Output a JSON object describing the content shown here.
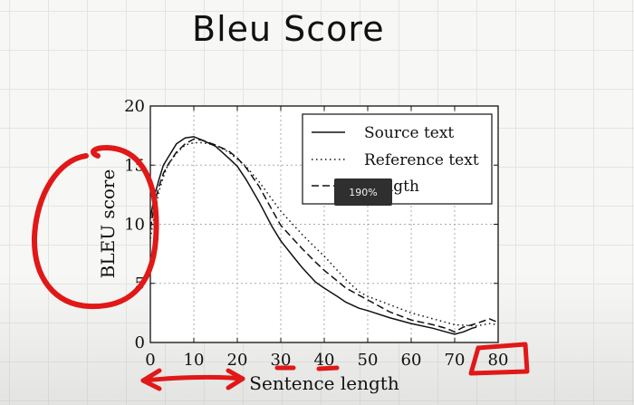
{
  "slide": {
    "title": "Bleu Score"
  },
  "zoom_tooltip": "190%",
  "chart_data": {
    "type": "line",
    "xlabel": "Sentence length",
    "ylabel": "BLEU score",
    "xlim": [
      0,
      80
    ],
    "ylim": [
      0,
      20
    ],
    "x_ticks": [
      0,
      10,
      20,
      30,
      40,
      50,
      60,
      70,
      80
    ],
    "y_ticks": [
      0,
      5,
      10,
      15,
      20
    ],
    "grid": true,
    "legend_position": "top-right",
    "series": [
      {
        "name": "Source text",
        "style": "solid",
        "x": [
          0,
          1,
          2,
          3,
          4,
          6,
          8,
          10,
          12,
          15,
          18,
          20,
          22,
          25,
          28,
          30,
          33,
          35,
          38,
          40,
          43,
          45,
          48,
          50,
          55,
          60,
          65,
          68,
          70,
          72,
          74,
          75
        ],
        "y": [
          10.5,
          12.5,
          13.8,
          15.0,
          15.6,
          16.8,
          17.3,
          17.4,
          17.1,
          16.6,
          15.6,
          14.9,
          13.8,
          11.9,
          9.8,
          8.6,
          7.2,
          6.3,
          5.1,
          4.6,
          3.9,
          3.4,
          2.9,
          2.7,
          2.1,
          1.6,
          1.2,
          0.9,
          0.7,
          0.9,
          1.2,
          1.3
        ]
      },
      {
        "name": "Reference text",
        "style": "dotted",
        "x": [
          0,
          1,
          2,
          3,
          4,
          6,
          8,
          10,
          12,
          15,
          18,
          20,
          22,
          25,
          28,
          30,
          33,
          35,
          38,
          40,
          43,
          45,
          48,
          50,
          55,
          60,
          65,
          70,
          75,
          78,
          80
        ],
        "y": [
          8.8,
          11.0,
          12.8,
          14.0,
          15.0,
          16.0,
          16.7,
          16.9,
          16.9,
          16.7,
          16.1,
          15.5,
          14.9,
          13.6,
          12.1,
          11.1,
          9.9,
          9.1,
          8.0,
          7.3,
          6.1,
          5.3,
          4.3,
          3.9,
          3.2,
          2.5,
          2.0,
          1.5,
          1.4,
          1.6,
          1.5
        ]
      },
      {
        "name": "Length",
        "style": "dashed",
        "x": [
          0,
          1,
          2,
          3,
          4,
          6,
          8,
          10,
          12,
          15,
          18,
          20,
          22,
          25,
          28,
          30,
          33,
          35,
          38,
          40,
          43,
          45,
          48,
          50,
          55,
          60,
          65,
          68,
          70,
          72,
          75,
          78,
          80
        ],
        "y": [
          9.6,
          11.8,
          13.2,
          14.3,
          15.0,
          16.1,
          16.8,
          17.2,
          17.1,
          16.7,
          16.2,
          15.6,
          14.8,
          13.2,
          11.2,
          9.9,
          8.7,
          7.9,
          6.8,
          6.1,
          5.2,
          4.6,
          4.0,
          3.6,
          2.6,
          1.9,
          1.5,
          1.2,
          0.9,
          1.3,
          1.6,
          2.0,
          1.7
        ]
      }
    ]
  }
}
